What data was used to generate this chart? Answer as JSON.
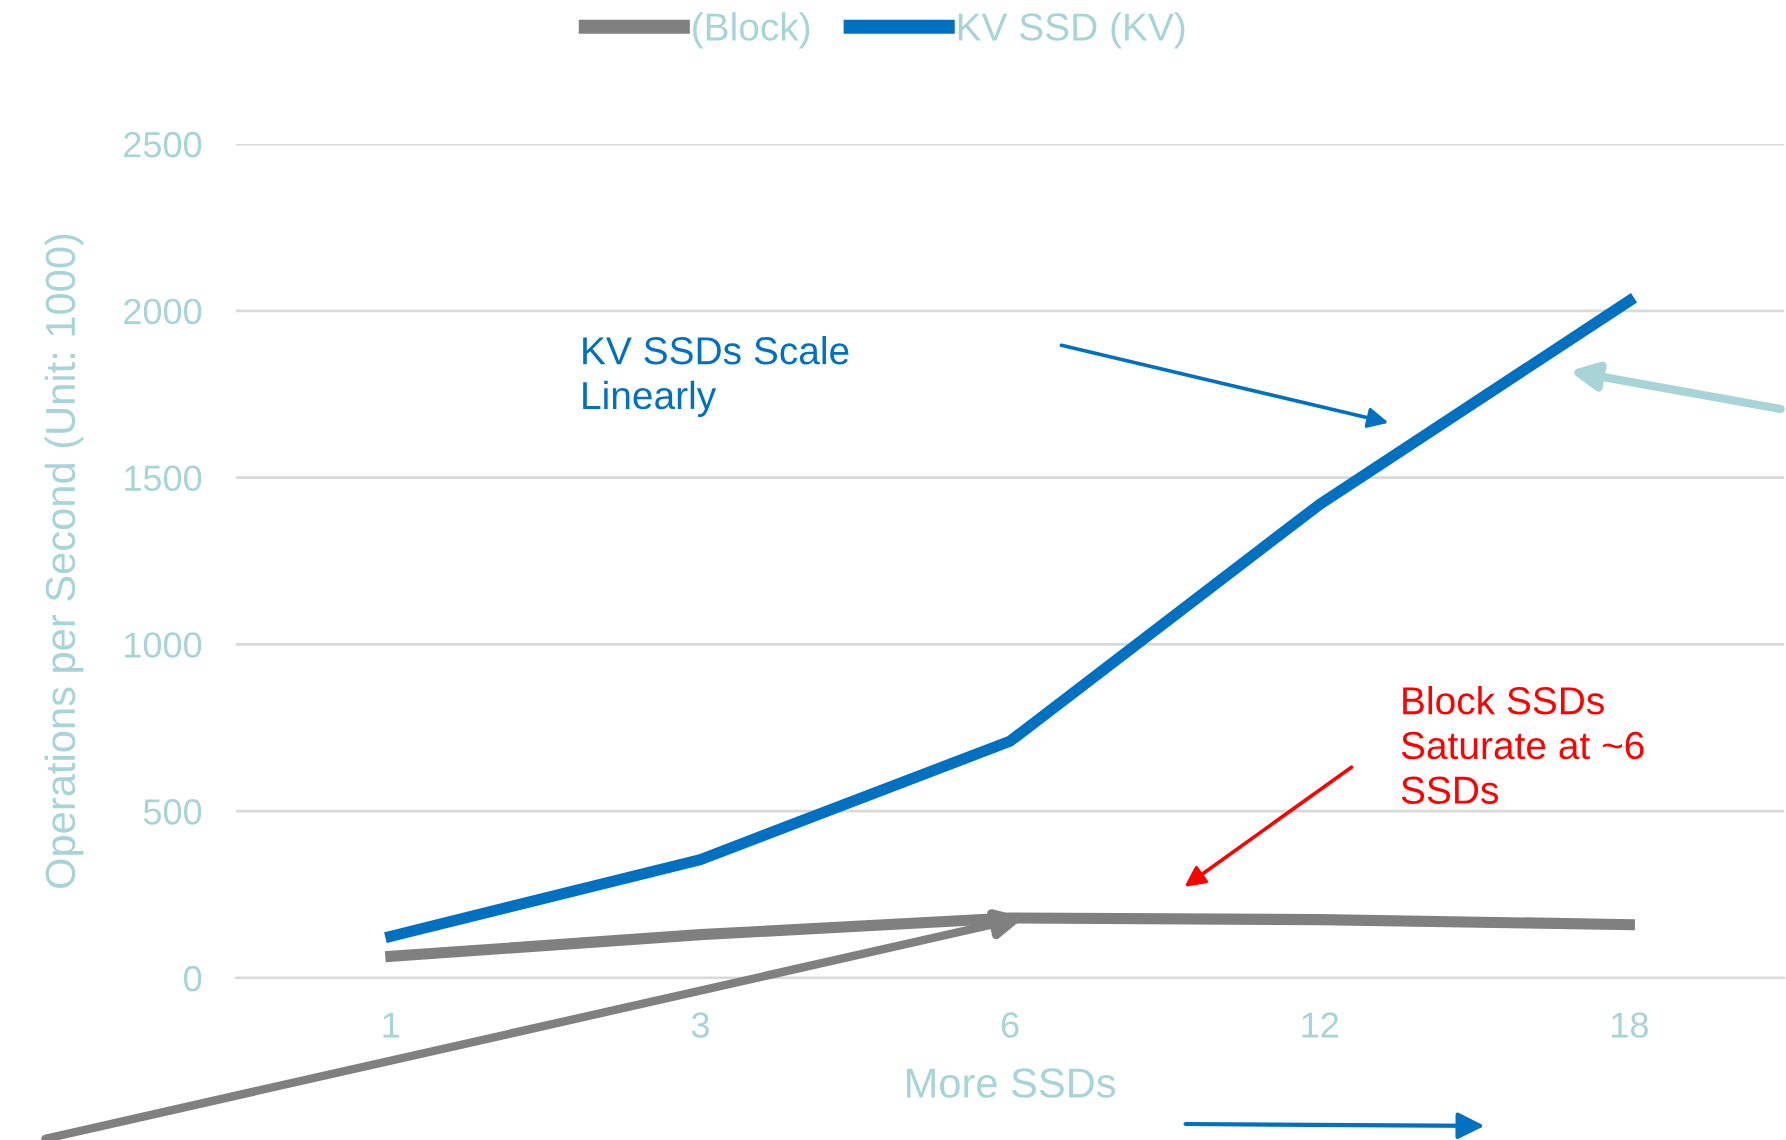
{
  "chart_data": {
    "type": "line",
    "xlabel": "More SSDs",
    "ylabel": "Operations per Second (Unit: 1000)",
    "categories": [
      "1",
      "3",
      "6",
      "12",
      "18"
    ],
    "series": [
      {
        "name": "(Block)",
        "color": "#808080",
        "values": [
          65,
          130,
          180,
          175,
          160
        ]
      },
      {
        "name": "KV SSD (KV)",
        "color": "#0070c0",
        "values": [
          125,
          355,
          710,
          1420,
          2030
        ]
      }
    ],
    "ylim": [
      0,
      2500
    ],
    "yticks": [
      0,
      500,
      1000,
      1500,
      2000,
      2500
    ],
    "grid": "y",
    "legend": "top",
    "marker": "none",
    "line_style": "solid",
    "annotations": [
      "KV SSDs Scale\nLinearly",
      "Block SSDs\nSaturate at ~6\nSSDs"
    ]
  }
}
